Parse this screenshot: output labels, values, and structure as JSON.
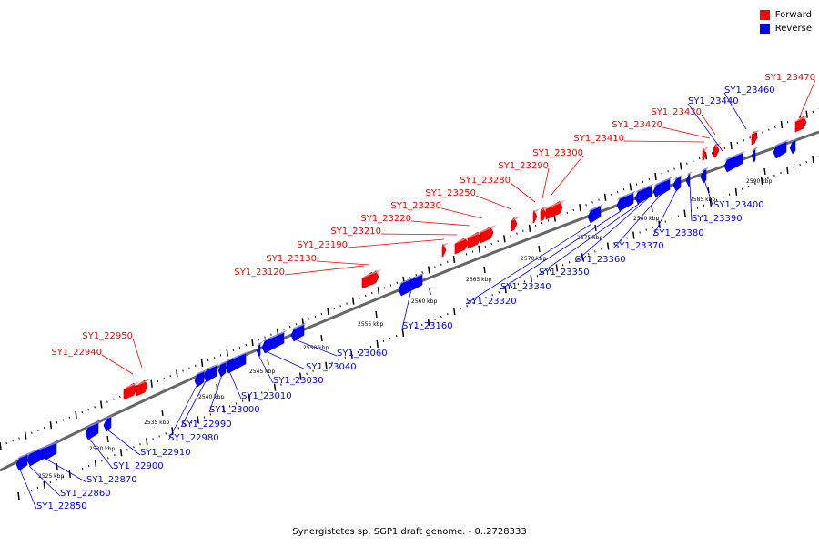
{
  "legend": {
    "forward_label": "Forward",
    "reverse_label": "Reverse",
    "forward_color": "#ff0000",
    "reverse_color": "#0000ff"
  },
  "caption": "Synergistetes sp. SGP1 draft genome. - 0..2728333",
  "colors": {
    "forward": "#ff0000",
    "reverse": "#0000ff",
    "backbone": "#666666"
  },
  "kbp_markers": [
    "2525 kbp",
    "2530 kbp",
    "2535 kbp",
    "2540 kbp",
    "2545 kbp",
    "2550 kbp",
    "2555 kbp",
    "2560 kbp",
    "2565 kbp",
    "2570 kbp",
    "2575 kbp",
    "2580 kbp",
    "2585 kbp",
    "2590 kbp"
  ],
  "genes_forward": [
    "SY1_22940",
    "SY1_22950",
    "SY1_23120",
    "SY1_23130",
    "SY1_23190",
    "SY1_23210",
    "SY1_23220",
    "SY1_23230",
    "SY1_23250",
    "SY1_23280",
    "SY1_23290",
    "SY1_23300",
    "SY1_23410",
    "SY1_23420",
    "SY1_23430",
    "SY1_23470"
  ],
  "genes_reverse": [
    "SY1_22850",
    "SY1_22860",
    "SY1_22870",
    "SY1_22900",
    "SY1_22910",
    "SY1_22980",
    "SY1_22990",
    "SY1_23000",
    "SY1_23010",
    "SY1_23030",
    "SY1_23040",
    "SY1_23060",
    "SY1_23160",
    "SY1_23320",
    "SY1_23340",
    "SY1_23350",
    "SY1_23360",
    "SY1_23370",
    "SY1_23380",
    "SY1_23390",
    "SY1_23400",
    "SY1_23440",
    "SY1_23460"
  ]
}
